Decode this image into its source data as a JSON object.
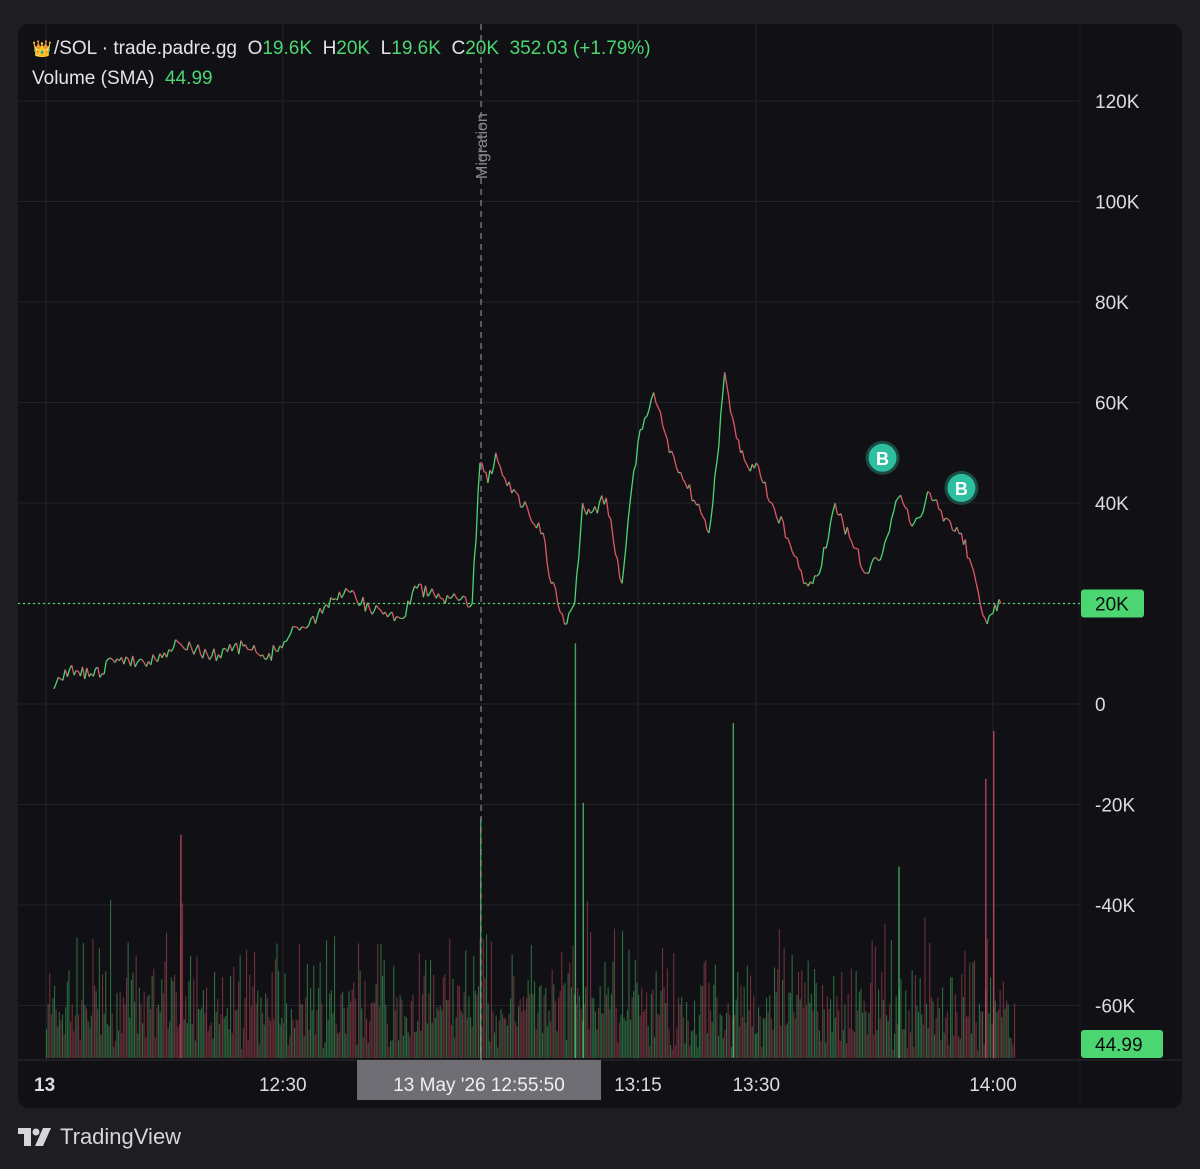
{
  "legend": {
    "crown_icon": "crown-icon",
    "symbol": "/SOL · trade.padre.gg",
    "o_label": "O",
    "o_value": "19.6K",
    "h_label": "H",
    "h_value": "20K",
    "l_label": "L",
    "l_value": "19.6K",
    "c_label": "C",
    "c_value": "20K",
    "change": "352.03 (+1.79%)",
    "volume_label": "Volume (SMA)",
    "volume_value": "44.99"
  },
  "branding": {
    "label": "TradingView"
  },
  "colors": {
    "up": "#4cd672",
    "down": "#e0566a",
    "badge": "#2ebfa0",
    "background": "#111115"
  },
  "chart_data": {
    "type": "line",
    "y_tick_labels": [
      "120K",
      "100K",
      "80K",
      "60K",
      "40K",
      "20K",
      "0",
      "-20K",
      "-40K",
      "-60K"
    ],
    "y_ticks": [
      120000,
      100000,
      80000,
      60000,
      40000,
      20000,
      0,
      -20000,
      -40000,
      -60000
    ],
    "ylim": [
      -70000,
      127000
    ],
    "x_tick_labels": [
      "13",
      "12:30",
      "13:15",
      "13:30",
      "14:00"
    ],
    "x_ticks": [
      "12:00",
      "12:30",
      "13:15",
      "13:30",
      "14:00"
    ],
    "xlim": [
      "12:01",
      "14:08"
    ],
    "grid": true,
    "series": [
      {
        "x": [
          "12:01",
          "12:03",
          "12:06",
          "12:09",
          "12:13",
          "12:17",
          "12:21",
          "12:25",
          "12:28",
          "12:31",
          "12:35",
          "12:38",
          "12:41",
          "12:45",
          "12:47",
          "12:50",
          "12:54",
          "12:55",
          "12:56",
          "12:57",
          "12:59",
          "13:01",
          "13:03",
          "13:04",
          "13:06",
          "13:07",
          "13:08",
          "13:09",
          "13:11",
          "13:13",
          "13:14",
          "13:15",
          "13:17",
          "13:19",
          "13:21",
          "13:23",
          "13:24",
          "13:25",
          "13:26",
          "13:27",
          "13:28",
          "13:29",
          "13:30",
          "13:32",
          "13:34",
          "13:36",
          "13:38",
          "13:40",
          "13:41",
          "13:44",
          "13:46",
          "13:48",
          "13:50",
          "13:52",
          "13:54",
          "13:56",
          "13:57",
          "13:59",
          "14:00",
          "14:01"
        ],
        "values": [
          3000,
          7000,
          5500,
          9000,
          8500,
          12000,
          9500,
          11500,
          9000,
          14000,
          18000,
          23000,
          19000,
          17000,
          23000,
          21000,
          20000,
          48000,
          44000,
          50000,
          42000,
          39000,
          34000,
          24000,
          16000,
          20000,
          40000,
          38000,
          41000,
          24000,
          40000,
          52000,
          62000,
          50000,
          44000,
          38000,
          34000,
          48000,
          66000,
          57000,
          50000,
          47000,
          48000,
          40000,
          33000,
          24000,
          26000,
          40000,
          36000,
          26000,
          30000,
          41000,
          36000,
          42000,
          37000,
          34000,
          29000,
          17000,
          18000,
          20000
        ]
      }
    ],
    "last_price_label": "20K",
    "last_price": 20000,
    "volume_last_label": "44.99",
    "event_marker": {
      "label": "Migration",
      "x": "12:55"
    },
    "trade_markers": [
      {
        "label": "B",
        "x": "13:46",
        "y": 49000
      },
      {
        "label": "B",
        "x": "13:56",
        "y": 43000
      }
    ],
    "crosshair_time_label": "13 May '26   12:55:50",
    "volume_spikes": [
      {
        "x": "12:55",
        "v": 30,
        "up": true
      },
      {
        "x": "13:07",
        "v": 52,
        "up": true
      },
      {
        "x": "13:27",
        "v": 42,
        "up": true
      },
      {
        "x": "13:59",
        "v": 35,
        "up": false
      },
      {
        "x": "14:00",
        "v": 41,
        "up": false
      },
      {
        "x": "13:48",
        "v": 24,
        "up": true
      },
      {
        "x": "12:17",
        "v": 28,
        "up": false
      },
      {
        "x": "13:08",
        "v": 32,
        "up": true
      }
    ]
  }
}
